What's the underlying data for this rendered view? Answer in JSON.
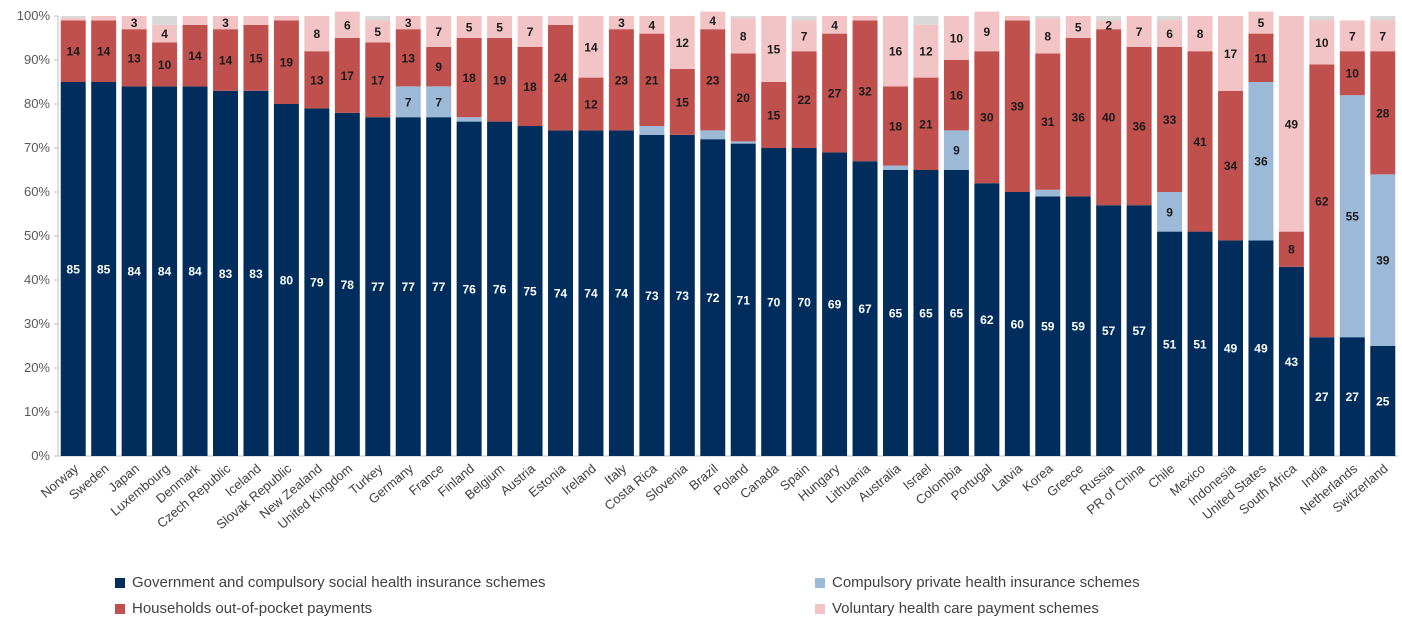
{
  "chart_data": {
    "type": "bar",
    "stacked": true,
    "orientation": "vertical",
    "categories": [
      "Norway",
      "Sweden",
      "Japan",
      "Luxembourg",
      "Denmark",
      "Czech Republic",
      "Iceland",
      "Slovak Republic",
      "New Zealand",
      "United Kingdom",
      "Turkey",
      "Germany",
      "France",
      "Finland",
      "Belgium",
      "Austria",
      "Estonia",
      "Ireland",
      "Italy",
      "Costa Rica",
      "Slovenia",
      "Brazil",
      "Poland",
      "Canada",
      "Spain",
      "Hungary",
      "Lithuania",
      "Australia",
      "Israel",
      "Colombia",
      "Portugal",
      "Latvia",
      "Korea",
      "Greece",
      "Russia",
      "PR of China",
      "Chile",
      "Mexico",
      "Indonesia",
      "United States",
      "South Africa",
      "India",
      "Netherlands",
      "Switzerland"
    ],
    "series": [
      {
        "name": "Government and compulsory social health insurance schemes",
        "color": "#002d5c",
        "values": [
          85,
          85,
          84,
          84,
          84,
          83,
          83,
          80,
          79,
          78,
          77,
          77,
          77,
          76,
          76,
          75,
          74,
          74,
          74,
          73,
          73,
          72,
          71,
          70,
          70,
          69,
          67,
          65,
          65,
          65,
          62,
          60,
          59,
          59,
          57,
          57,
          51,
          51,
          49,
          49,
          43,
          27,
          27,
          25
        ],
        "labels": [
          "85",
          "85",
          "84",
          "84",
          "84",
          "83",
          "83",
          "80",
          "79",
          "78",
          "77",
          "77",
          "77",
          "76",
          "76",
          "75",
          "74",
          "74",
          "74",
          "73",
          "73",
          "72",
          "71",
          "70",
          "70",
          "69",
          "67",
          "65",
          "65",
          "65",
          "62",
          "60",
          "59",
          "59",
          "57",
          "57",
          "51",
          "51",
          "49",
          "49",
          "43",
          "27",
          "27",
          "25"
        ]
      },
      {
        "name": "Compulsory private health insurance schemes",
        "color": "#9db9d8",
        "values": [
          0,
          0,
          0,
          0,
          0,
          0,
          0,
          0,
          0,
          0,
          0,
          7,
          7,
          1,
          0,
          0,
          0,
          0,
          0,
          2,
          0,
          2,
          0.5,
          0,
          0,
          0,
          0,
          1,
          0,
          9,
          0,
          0,
          1.5,
          0,
          0,
          0,
          9,
          0,
          0,
          36,
          0,
          0,
          55,
          39
        ],
        "labels": [
          "",
          "",
          "",
          "",
          "",
          "",
          "",
          "",
          "",
          "",
          "",
          "7",
          "7",
          "",
          "",
          "",
          "",
          "",
          "",
          "",
          "",
          "",
          "",
          "",
          "",
          "",
          "",
          "",
          "",
          "9",
          "",
          "",
          "",
          "",
          "",
          "",
          "9",
          "",
          "",
          "36",
          "",
          "",
          "55",
          "39"
        ]
      },
      {
        "name": "Households out-of-pocket payments",
        "color": "#c0504d",
        "values": [
          14,
          14,
          13,
          10,
          14,
          14,
          15,
          19,
          13,
          17,
          17,
          13,
          9,
          18,
          19,
          18,
          24,
          12,
          23,
          21,
          15,
          23,
          20,
          15,
          22,
          27,
          32,
          18,
          21,
          16,
          30,
          39,
          31,
          36,
          40,
          36,
          33,
          41,
          34,
          11,
          8,
          62,
          10,
          28
        ],
        "labels": [
          "14",
          "14",
          "13",
          "10",
          "14",
          "14",
          "15",
          "19",
          "13",
          "17",
          "17",
          "13",
          "9",
          "18",
          "19",
          "18",
          "24",
          "12",
          "23",
          "21",
          "15",
          "23",
          "20",
          "15",
          "22",
          "27",
          "32",
          "18",
          "21",
          "16",
          "30",
          "39",
          "31",
          "36",
          "40",
          "36",
          "33",
          "41",
          "34",
          "11",
          "8",
          "62",
          "10",
          "28"
        ]
      },
      {
        "name": "Voluntary health care payment schemes",
        "color": "#f2c4c6",
        "values": [
          0.5,
          1,
          3,
          4,
          2,
          3,
          2,
          1,
          8,
          6,
          5,
          3,
          7,
          5,
          5,
          7,
          2,
          14,
          3,
          4,
          12,
          4,
          8,
          15,
          7,
          4,
          1,
          16,
          12,
          10,
          9,
          1,
          8,
          5,
          2,
          7,
          6,
          8,
          17,
          5,
          49,
          10,
          7,
          7
        ],
        "labels": [
          "",
          "",
          "3",
          "4",
          "",
          "3",
          "",
          "",
          "8",
          "6",
          "5",
          "3",
          "7",
          "5",
          "5",
          "7",
          "",
          "14",
          "3",
          "4",
          "12",
          "4",
          "8",
          "15",
          "7",
          "4",
          "",
          "16",
          "12",
          "10",
          "9",
          "",
          "8",
          "5",
          "2",
          "7",
          "6",
          "8",
          "17",
          "5",
          "49",
          "10",
          "7",
          "7"
        ]
      },
      {
        "name": "",
        "color": "#d9d9d9",
        "values": [
          0.5,
          0,
          0,
          2,
          0,
          0,
          0,
          0,
          0,
          0,
          1,
          0,
          0,
          0,
          0,
          0,
          0,
          0,
          0,
          0,
          0,
          0,
          0.5,
          0,
          1,
          0,
          0,
          0,
          2,
          0,
          0,
          0,
          0.5,
          0,
          1,
          0,
          1,
          0,
          0,
          0,
          0,
          1,
          0,
          1
        ],
        "labels": []
      }
    ],
    "y_tick_labels": [
      "0%",
      "10%",
      "20%",
      "30%",
      "40%",
      "50%",
      "60%",
      "70%",
      "80%",
      "90%",
      "100%"
    ],
    "ylim": [
      0,
      100
    ],
    "legend_position": "bottom",
    "grid": false
  }
}
